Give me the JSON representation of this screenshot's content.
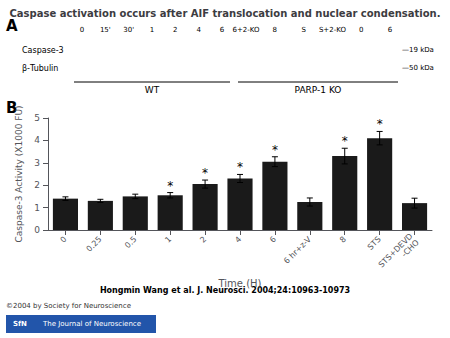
{
  "chart_data": {
    "type": "bar",
    "title": "Caspase activation occurs after AIF translocation and nuclear condensation.",
    "categories": [
      "0",
      "0.25",
      "0.5",
      "1",
      "2",
      "4",
      "6",
      "6 hr+z-V",
      "8",
      "STS",
      "STS+DEVD\n-CHO"
    ],
    "values": [
      1.4,
      1.3,
      1.5,
      1.55,
      2.05,
      2.3,
      3.05,
      1.25,
      3.3,
      4.1,
      1.2
    ],
    "errors": [
      0.08,
      0.07,
      0.1,
      0.12,
      0.18,
      0.18,
      0.22,
      0.18,
      0.35,
      0.3,
      0.22
    ],
    "significance": [
      null,
      null,
      null,
      "*",
      "*",
      "*",
      "*",
      null,
      "*",
      "*",
      null
    ],
    "color": "#1a1a1a",
    "xlabel": "Time (H)",
    "ylabel": "Caspase-3 Activity (X1000 FU)",
    "ylim": [
      0,
      5
    ],
    "yticks": [
      0,
      1,
      2,
      3,
      4,
      5
    ],
    "grid": false,
    "panel_labels": [
      "A",
      "B"
    ],
    "blot": {
      "groups": [
        {
          "label": "WT",
          "lanes": [
            "0",
            "15'",
            "30'",
            "1",
            "2",
            "4",
            "6"
          ]
        },
        {
          "label": "PARP-1 KO",
          "lanes": [
            "6+2-KO",
            "8",
            "S",
            "S+2-KO",
            "0",
            "6"
          ]
        }
      ],
      "rows": [
        {
          "label": "Caspase-3",
          "size": "—19 kDa"
        },
        {
          "label": "β-Tubulin",
          "size": "—50 kDa"
        }
      ]
    },
    "citation": "Hongmin Wang et al. J. Neurosci. 2004;24:10963-10973",
    "logo": [
      "SfN",
      "The Journal of Neuroscience"
    ],
    "copyright": "©2004 by Society for Neuroscience"
  }
}
